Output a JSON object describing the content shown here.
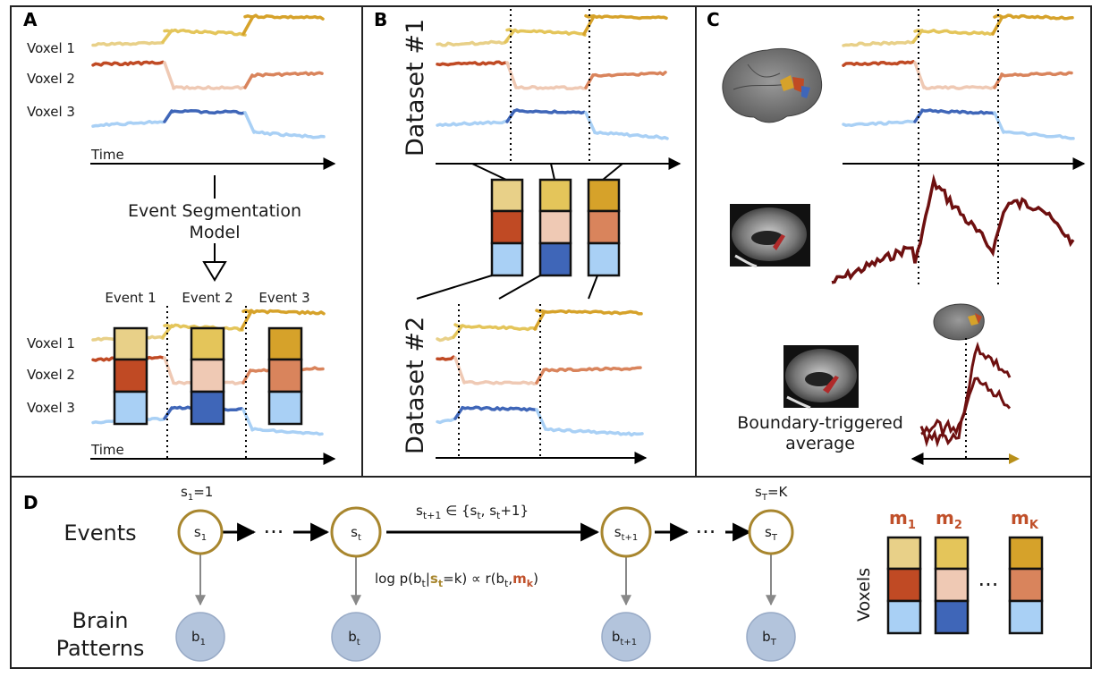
{
  "colors": {
    "v1_light": "#e8d088",
    "v1_mid": "#e4c55a",
    "v1_dark": "#d6a22a",
    "v2_dark": "#c04a24",
    "v2_light": "#efc9b4",
    "v2_mid": "#d9845c",
    "v3_light": "#a9d0f5",
    "v3_dark": "#3f66b8",
    "state_node": "#a8862e",
    "brain_node": "#b3c4dc",
    "brown_curve": "#6e1010",
    "m_label": "#c0502a"
  },
  "panels": {
    "A": {
      "letter": "A",
      "voxels_top": [
        "Voxel 1",
        "Voxel 2",
        "Voxel 3"
      ],
      "time": "Time",
      "model_line1": "Event Segmentation",
      "model_line2": "Model",
      "events": [
        "Event 1",
        "Event 2",
        "Event 3"
      ],
      "voxels_bottom": [
        "Voxel 1",
        "Voxel 2",
        "Voxel 3"
      ],
      "time_bottom": "Time"
    },
    "B": {
      "letter": "B",
      "dataset1": "Dataset #1",
      "dataset2": "Dataset #2"
    },
    "C": {
      "letter": "C",
      "boundary_line1": "Boundary-triggered",
      "boundary_line2": "average"
    },
    "D": {
      "letter": "D",
      "events_label": "Events",
      "brain_label_line1": "Brain",
      "brain_label_line2": "Patterns",
      "voxels_label": "Voxels",
      "ellipsis": "···",
      "s1_eq": "s",
      "s1_eq_sub": "1",
      "s1_eq_rest": "=1",
      "sT_eq": "s",
      "sT_eq_sub": "T",
      "sT_eq_rest": "=K",
      "transition_pre": "s",
      "transition_sub1": "t+1",
      "transition_mid": " ∈ {s",
      "transition_sub2": "t",
      "transition_mid2": ", s",
      "transition_sub3": "t",
      "transition_post": "+1}",
      "log_pre": "log p(b",
      "log_sub1": "t",
      "log_bar": "|",
      "log_s": "s",
      "log_sub2": "t",
      "log_eqk": "=k) ∝ r(b",
      "log_sub3": "t",
      "log_comma": ",",
      "log_m": "m",
      "log_sub4": "k",
      "log_close": ")",
      "state_nodes": [
        {
          "main": "s",
          "sub": "1"
        },
        {
          "main": "s",
          "sub": "t"
        },
        {
          "main": "s",
          "sub": "t+1"
        },
        {
          "main": "s",
          "sub": "T"
        }
      ],
      "brain_nodes": [
        {
          "main": "b",
          "sub": "1"
        },
        {
          "main": "b",
          "sub": "t"
        },
        {
          "main": "b",
          "sub": "t+1"
        },
        {
          "main": "b",
          "sub": "T"
        }
      ],
      "m_labels": [
        {
          "main": "m",
          "sub": "1"
        },
        {
          "main": "m",
          "sub": "2"
        },
        {
          "main": "m",
          "sub": "K"
        }
      ]
    }
  }
}
